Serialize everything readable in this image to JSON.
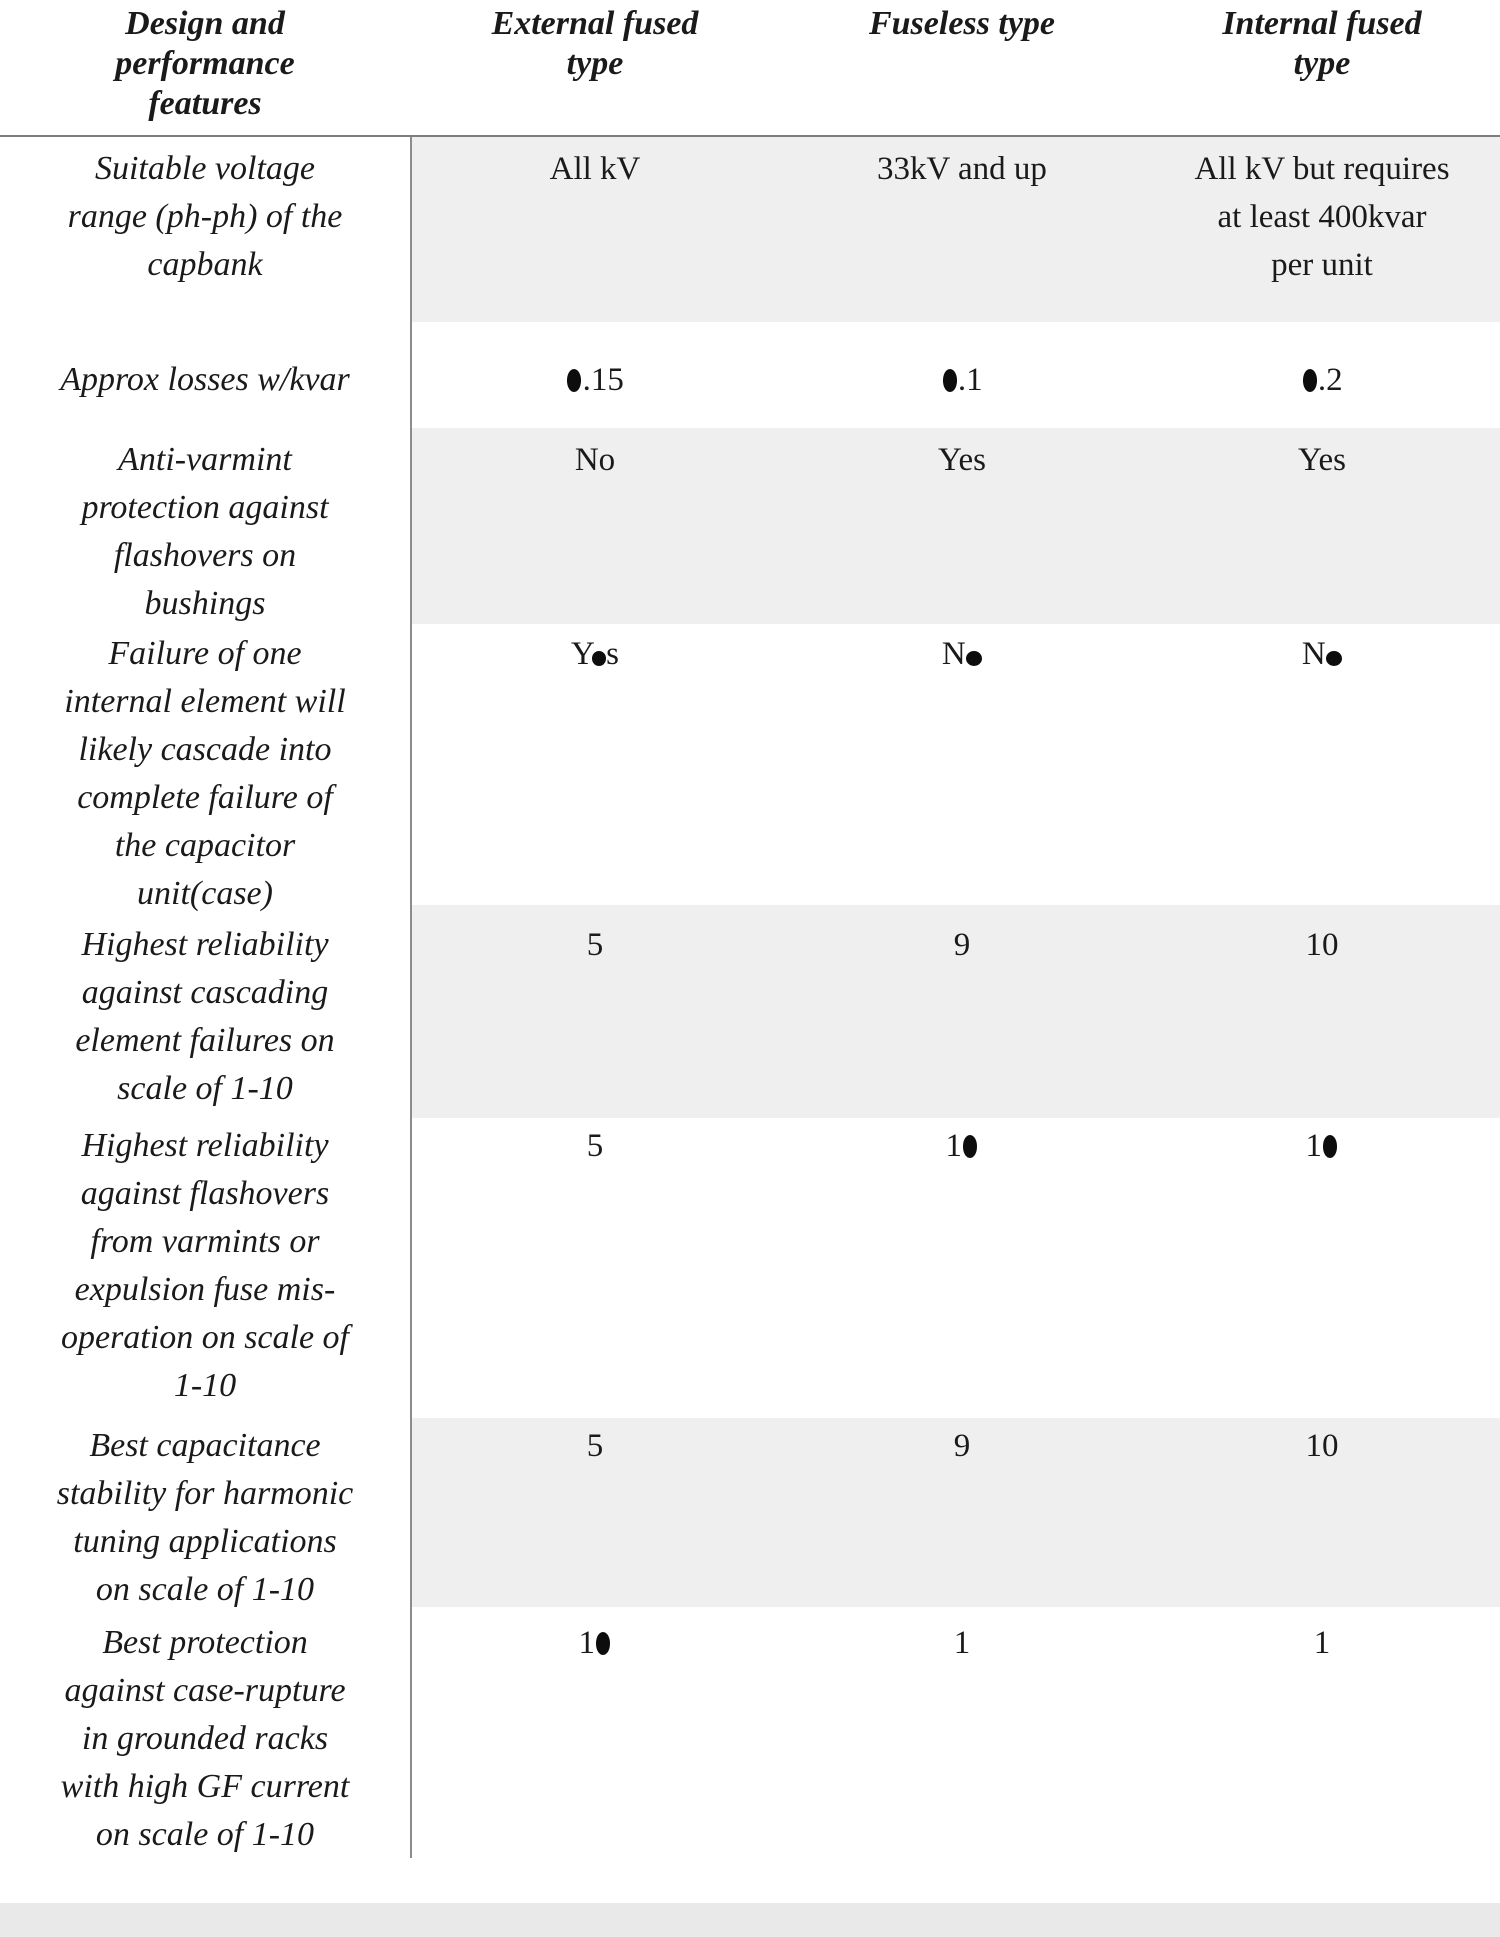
{
  "table": {
    "headers": [
      "Design and\nperformance\nfeatures",
      "External fused\ntype",
      "Fuseless type",
      "Internal fused\ntype"
    ],
    "rows": [
      {
        "feature": "Suitable voltage\nrange (ph-ph) of the\ncapbank",
        "values": [
          "All kV",
          "33kV and up",
          "All kV but requires\nat least 400kvar\nper unit"
        ]
      },
      {
        "feature": "Approx losses w/kvar",
        "values": [
          "0.15",
          "0.1",
          "0.2"
        ]
      },
      {
        "feature": "Anti-varmint\nprotection against\nflashovers on\nbushings",
        "values": [
          "No",
          "Yes",
          "Yes"
        ]
      },
      {
        "feature": "Failure of one\ninternal element will\nlikely cascade into\ncomplete failure of\nthe capacitor\nunit(case)",
        "values": [
          "Yes",
          "No",
          "No"
        ]
      },
      {
        "feature": "Highest reliability\nagainst cascading\nelement failures on\nscale of 1-10",
        "values": [
          "5",
          "9",
          "10"
        ]
      },
      {
        "feature": "Highest reliability\nagainst flashovers\nfrom varmints or\nexpulsion fuse mis-\noperation on scale of\n1-10",
        "values": [
          "5",
          "10",
          "10"
        ]
      },
      {
        "feature": "Best capacitance\nstability for harmonic\ntuning applications\non scale of 1-10",
        "values": [
          "5",
          "9",
          "10"
        ]
      },
      {
        "feature": "Best protection\nagainst case-rupture\nin grounded racks\nwith high GF current\non scale of 1-10",
        "values": [
          "10",
          "1",
          "1"
        ]
      }
    ],
    "stripe_color": "#efefef",
    "divider_color": "#7d7d7d",
    "text_color": "#1a1a1a"
  },
  "footer": {
    "bar_color": "#e9e9e9"
  }
}
